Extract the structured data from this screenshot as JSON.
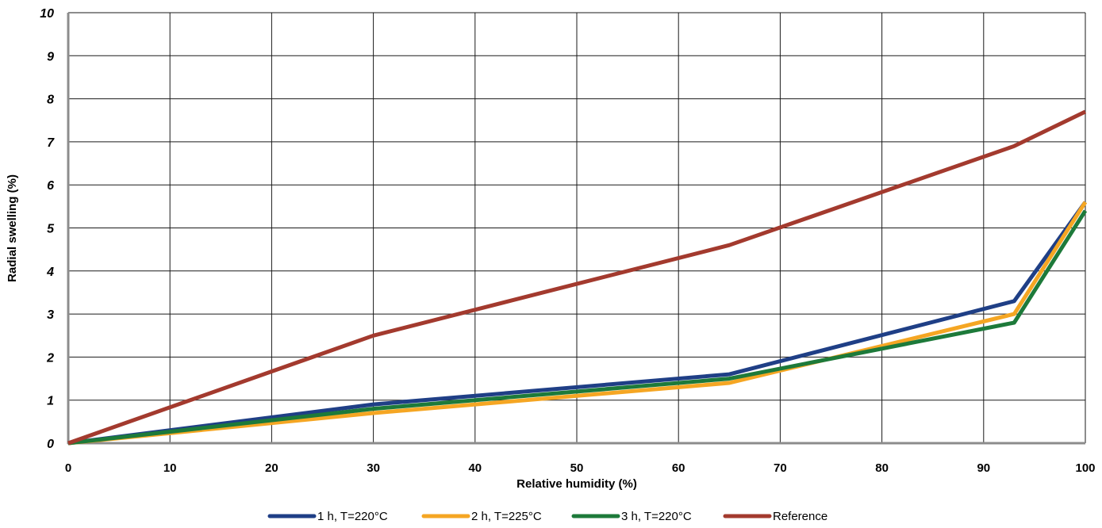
{
  "chart_data": {
    "type": "line",
    "title": "",
    "xlabel": "Relative humidity (%)",
    "ylabel": "Radial swelling (%)",
    "xlim": [
      0,
      100
    ],
    "ylim": [
      0,
      10
    ],
    "x_ticks": [
      "0",
      "10",
      "20",
      "30",
      "40",
      "50",
      "60",
      "70",
      "80",
      "90",
      "100"
    ],
    "y_ticks": [
      "0",
      "1",
      "2",
      "3",
      "4",
      "5",
      "6",
      "7",
      "8",
      "9",
      "10"
    ],
    "grid": true,
    "legend_position": "bottom",
    "x": [
      0,
      30,
      65,
      93,
      100
    ],
    "series": [
      {
        "name": "1 h, T=220°C",
        "color": "#1f3f86",
        "values": [
          0,
          0.9,
          1.6,
          3.3,
          5.6
        ]
      },
      {
        "name": "2 h, T=225°C",
        "color": "#f5a623",
        "values": [
          0,
          0.7,
          1.4,
          3.0,
          5.6
        ]
      },
      {
        "name": "3 h, T=220°C",
        "color": "#1d7a3a",
        "values": [
          0,
          0.8,
          1.5,
          2.8,
          5.4
        ]
      },
      {
        "name": "Reference",
        "color": "#a33a2e",
        "values": [
          0,
          2.5,
          4.6,
          6.9,
          7.7
        ]
      }
    ]
  }
}
